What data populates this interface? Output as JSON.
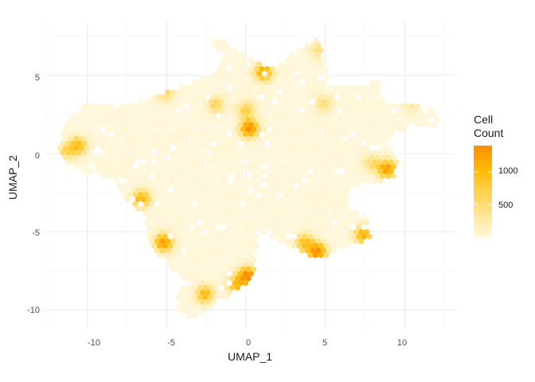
{
  "chart_data": {
    "type": "heatmap",
    "subtype": "hexbin",
    "title": "",
    "xlabel": "UMAP_1",
    "ylabel": "UMAP_2",
    "xlim": [
      -12.6,
      13.2
    ],
    "ylim": [
      -11.2,
      8.4
    ],
    "x_ticks": [
      -10,
      -5,
      0,
      5,
      10
    ],
    "y_ticks": [
      5,
      0,
      -5,
      -10
    ],
    "x_tick_labels": [
      "-10",
      "-5",
      "0",
      "5",
      "10"
    ],
    "y_tick_labels": [
      "5",
      "0",
      "-5",
      "-10"
    ],
    "grid": true,
    "legend": {
      "title_line1": "Cell",
      "title_line2": "Count",
      "position": "right",
      "range": [
        0,
        1400
      ],
      "breaks": [
        500,
        1000
      ],
      "break_labels": [
        "500",
        "1000"
      ]
    },
    "colors": {
      "low": "#FFF8DC",
      "mid": "#FFC20A",
      "high": "#FF8C00",
      "grid_major": "#EBEBEB",
      "grid_minor": "#F5F5F5"
    },
    "hotspots": [
      {
        "x": 0.2,
        "y": 1.6,
        "value": 1350
      },
      {
        "x": 0.0,
        "y": 2.8,
        "value": 650
      },
      {
        "x": 1.1,
        "y": 5.2,
        "value": 1100
      },
      {
        "x": -10.6,
        "y": 0.5,
        "value": 900
      },
      {
        "x": -11.4,
        "y": 0.1,
        "value": 500
      },
      {
        "x": -6.6,
        "y": -2.9,
        "value": 1000
      },
      {
        "x": -5.2,
        "y": -5.7,
        "value": 1250
      },
      {
        "x": -2.6,
        "y": -9.0,
        "value": 950
      },
      {
        "x": -0.6,
        "y": -8.4,
        "value": 900
      },
      {
        "x": 0.1,
        "y": -7.8,
        "value": 1300
      },
      {
        "x": 8.9,
        "y": -1.0,
        "value": 1200
      },
      {
        "x": 7.9,
        "y": -0.6,
        "value": 500
      },
      {
        "x": 3.7,
        "y": -5.7,
        "value": 850
      },
      {
        "x": 4.5,
        "y": -6.3,
        "value": 1300
      },
      {
        "x": 7.4,
        "y": -5.2,
        "value": 1000
      },
      {
        "x": -1.9,
        "y": 3.1,
        "value": 600
      },
      {
        "x": -5.1,
        "y": 3.9,
        "value": 550
      },
      {
        "x": 4.6,
        "y": 6.6,
        "value": 450
      },
      {
        "x": 10.4,
        "y": 3.1,
        "value": 300
      },
      {
        "x": 4.9,
        "y": 3.2,
        "value": 500
      }
    ]
  }
}
